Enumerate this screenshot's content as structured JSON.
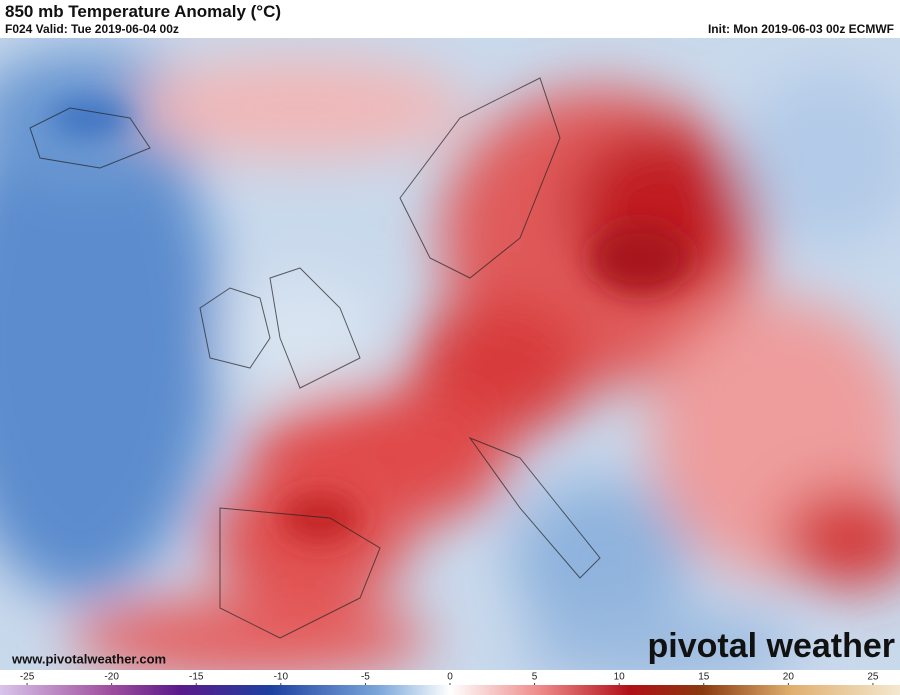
{
  "header": {
    "title": "850 mb Temperature Anomaly (°C)",
    "valid": "F024 Valid: Tue 2019-06-04 00z",
    "init": "Init: Mon 2019-06-03 00z ECMWF"
  },
  "map": {
    "website": "www.pivotalweather.com",
    "logo": "pivotal weather"
  },
  "colorbar": {
    "lim": [
      -26.6,
      26.6
    ],
    "ticks": [
      -25,
      -20,
      -15,
      -10,
      -5,
      0,
      5,
      10,
      15,
      20,
      25
    ]
  }
}
